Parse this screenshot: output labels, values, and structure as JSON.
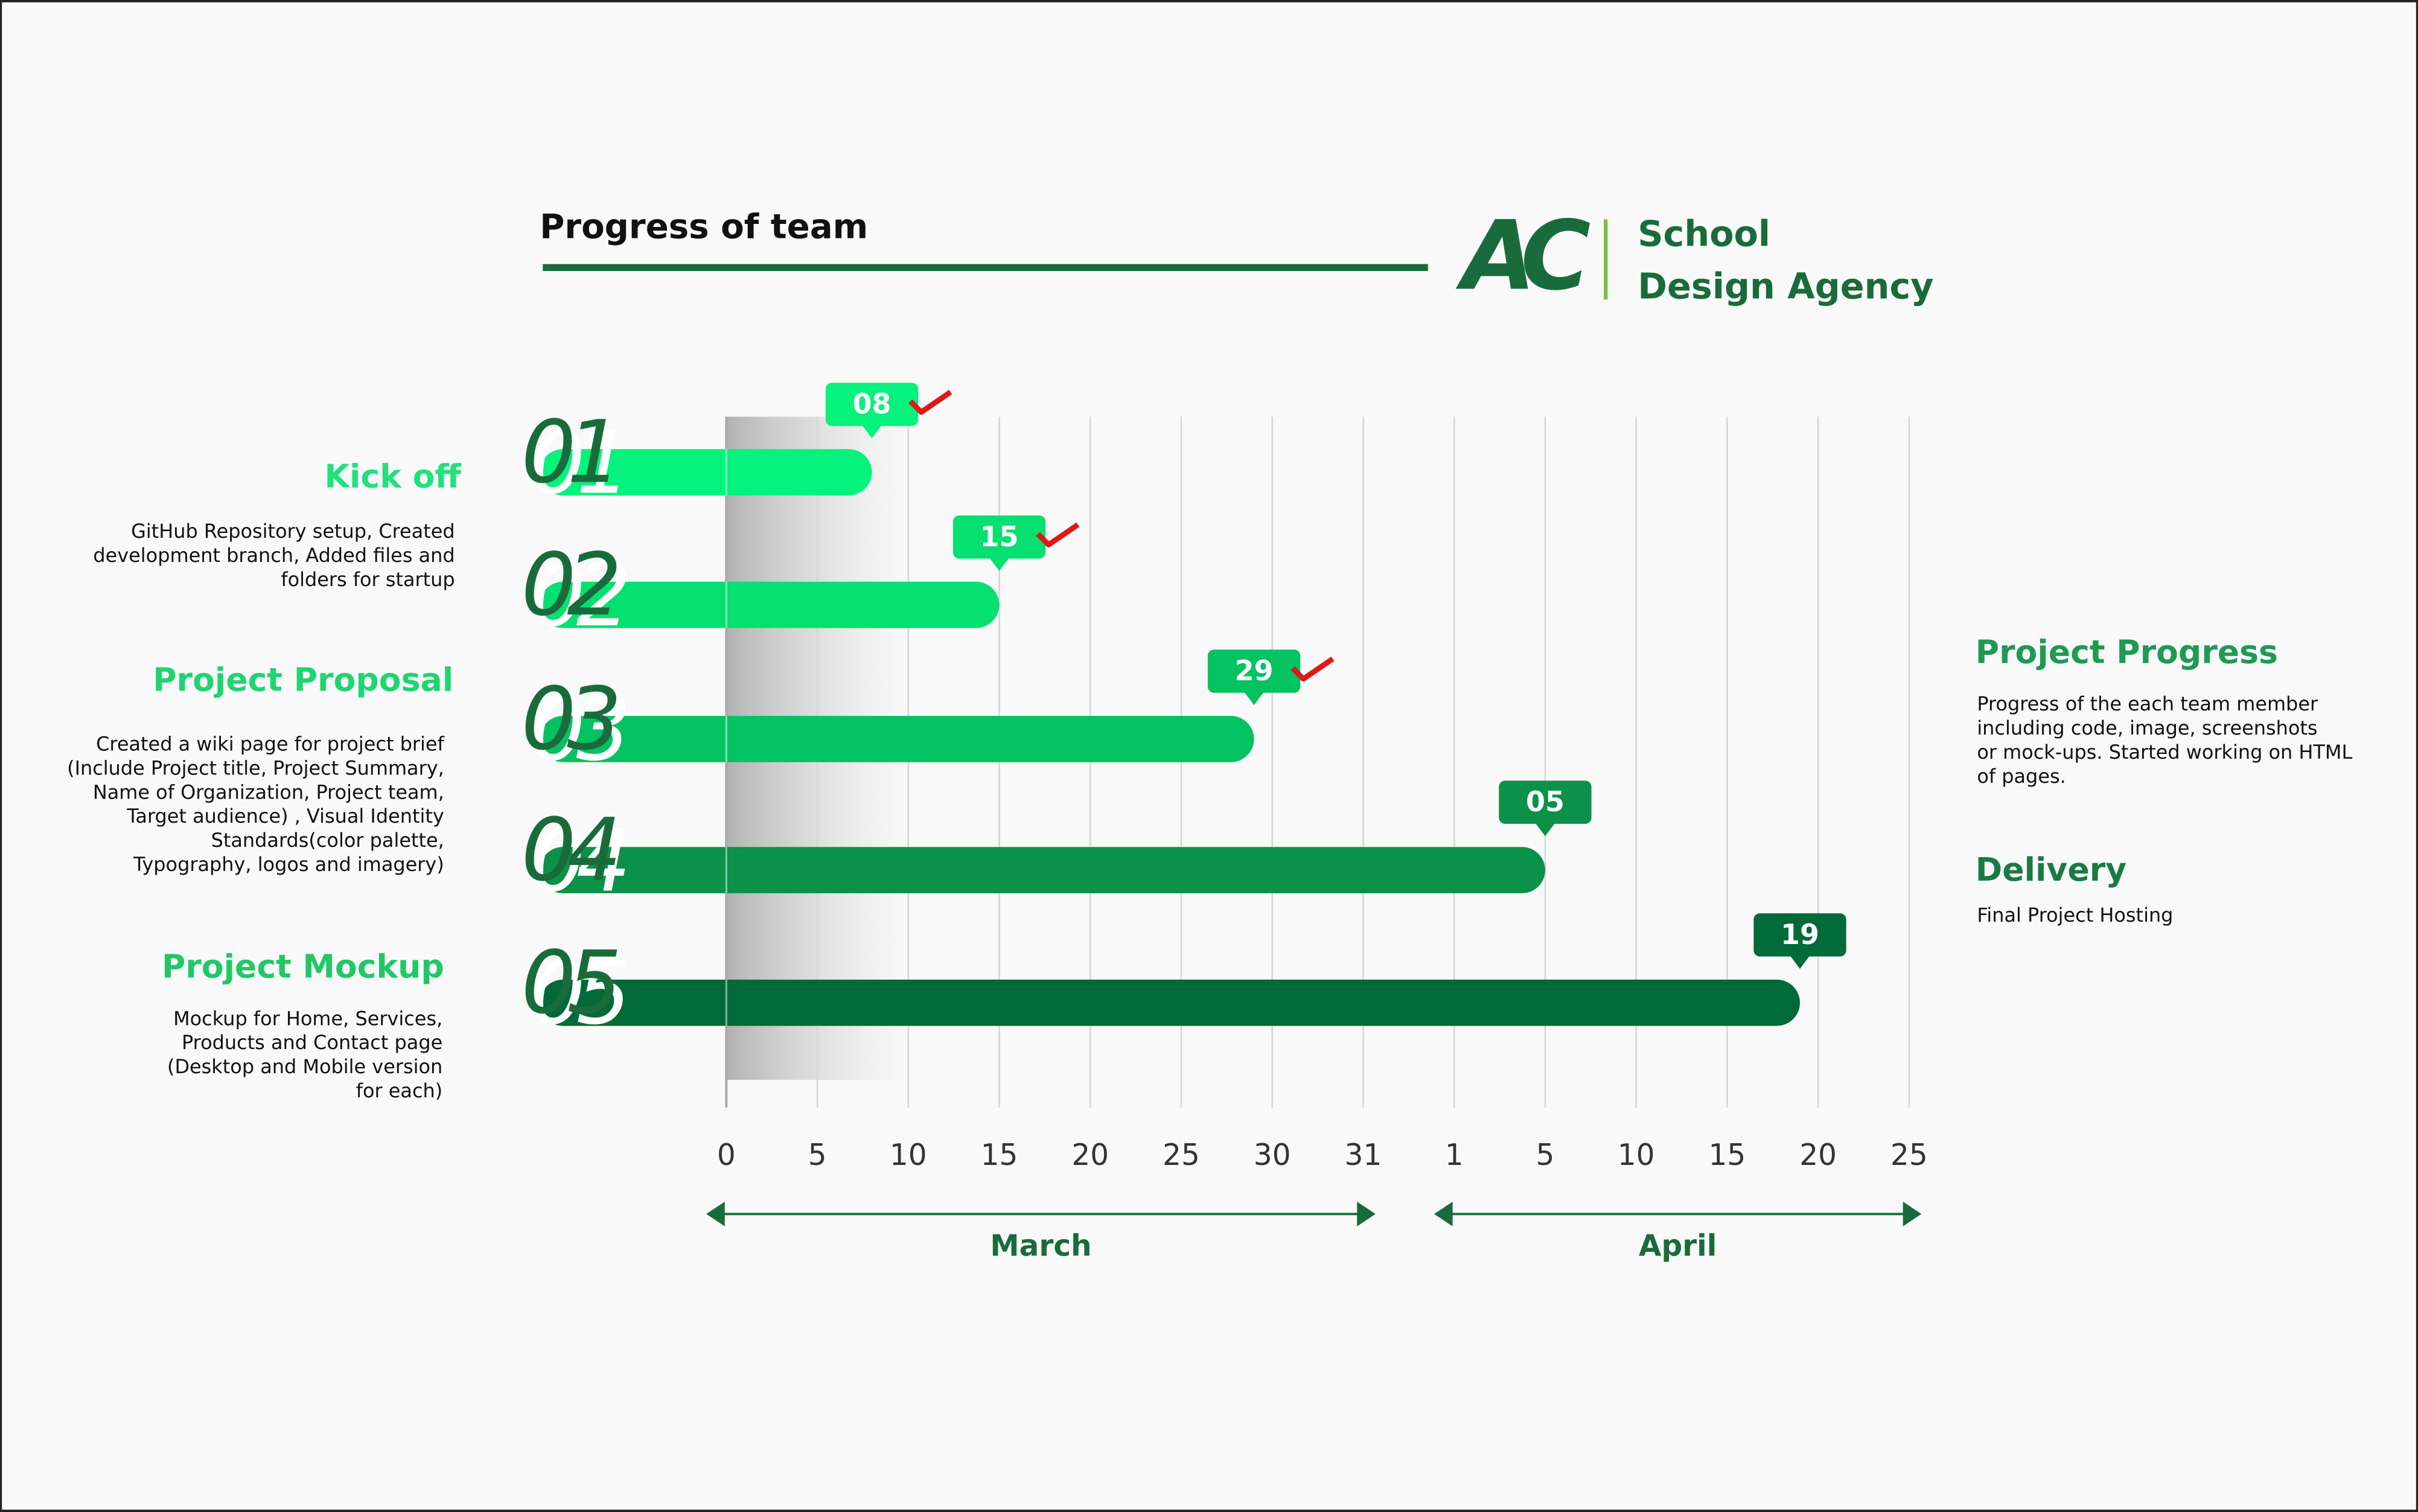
{
  "chart_data": {
    "type": "timeline-bar",
    "title": "Progress of team",
    "logo": "AC",
    "brand": [
      "School",
      "Design Agency"
    ],
    "months": [
      {
        "name": "March",
        "ticks": [
          0,
          5,
          10,
          15,
          20,
          25,
          30,
          31
        ]
      },
      {
        "name": "April",
        "ticks": [
          1,
          5,
          10,
          15,
          20,
          25
        ]
      }
    ],
    "categories": [
      "01",
      "02",
      "03",
      "04",
      "05"
    ],
    "values": [
      8,
      15,
      29,
      5,
      19
    ],
    "value_labels": [
      "08",
      "15",
      "29",
      "05",
      "19"
    ],
    "value_months": [
      "March",
      "March",
      "March",
      "April",
      "April"
    ],
    "checked": [
      true,
      true,
      true,
      false,
      false
    ],
    "colors": [
      "#05f27c",
      "#05e070",
      "#03c262",
      "#0b9148",
      "#006a38"
    ],
    "grid": true,
    "stages": [
      {
        "title": "Kick off",
        "text": [
          "GitHub Repository setup, Created",
          "development branch, Added files and",
          "folders for startup"
        ]
      },
      {
        "title": "Project Proposal",
        "text": [
          "Created a wiki page for project brief",
          "(Include Project title, Project Summary,",
          "Name of Organization, Project team,",
          "Target audience) , Visual Identity",
          "Standards(color palette,",
          "Typography, logos and imagery)"
        ]
      },
      {
        "title": "Project Mockup",
        "text": [
          "Mockup for Home, Services,",
          "Products and Contact page",
          "(Desktop and Mobile version",
          "for each)"
        ]
      }
    ],
    "notes": [
      {
        "title": "Project Progress",
        "text": [
          "Progress of the each team member",
          "including code, image, screenshots",
          "or mock-ups. Started working on HTML",
          "of pages."
        ]
      },
      {
        "title": "Delivery",
        "text": [
          "Final Project Hosting"
        ]
      }
    ]
  }
}
